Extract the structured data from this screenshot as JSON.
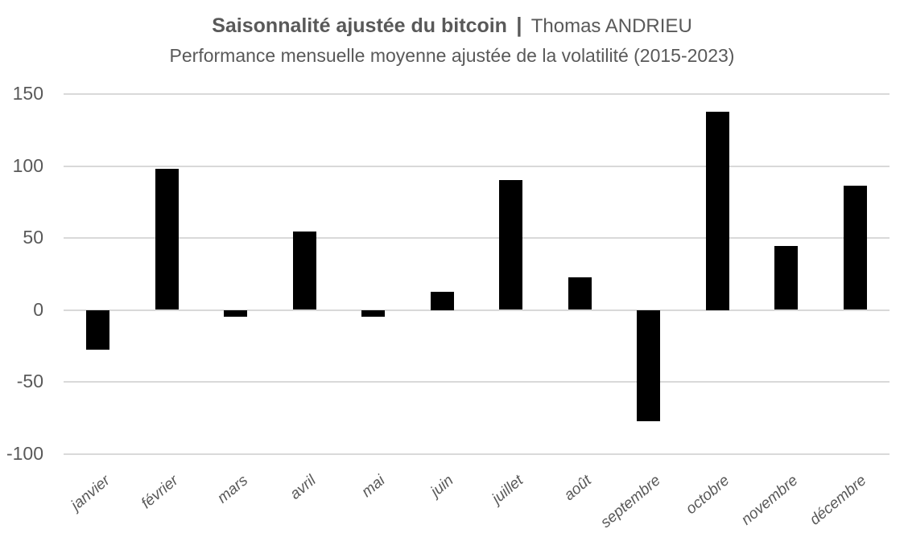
{
  "chart_data": {
    "type": "bar",
    "title": "Saisonnalité ajustée du bitcoin | Thomas ANDRIEU",
    "title_main": "Saisonnalité ajustée du bitcoin",
    "title_separator": "|",
    "title_author": "Thomas ANDRIEU",
    "subtitle": "Performance mensuelle moyenne ajustée de la volatilité (2015-2023)",
    "xlabel": "",
    "ylabel": "",
    "ylim": [
      -100,
      150
    ],
    "yticks": [
      "150",
      "100",
      "50",
      "0",
      "-50",
      "-100"
    ],
    "ytick_values": [
      150,
      100,
      50,
      0,
      -50,
      -100
    ],
    "grid": true,
    "legend": null,
    "bar_color": "#000000",
    "gridline_color": "#d9d9d9",
    "text_color": "#595959",
    "categories": [
      "janvier",
      "février",
      "mars",
      "avril",
      "mai",
      "juin",
      "juillet",
      "août",
      "septembre",
      "octobre",
      "novembre",
      "décembre"
    ],
    "values": [
      -27.5,
      98,
      -4.5,
      54.5,
      -4.5,
      12.5,
      90,
      22.5,
      -77.5,
      137.5,
      44.5,
      86.5
    ]
  }
}
